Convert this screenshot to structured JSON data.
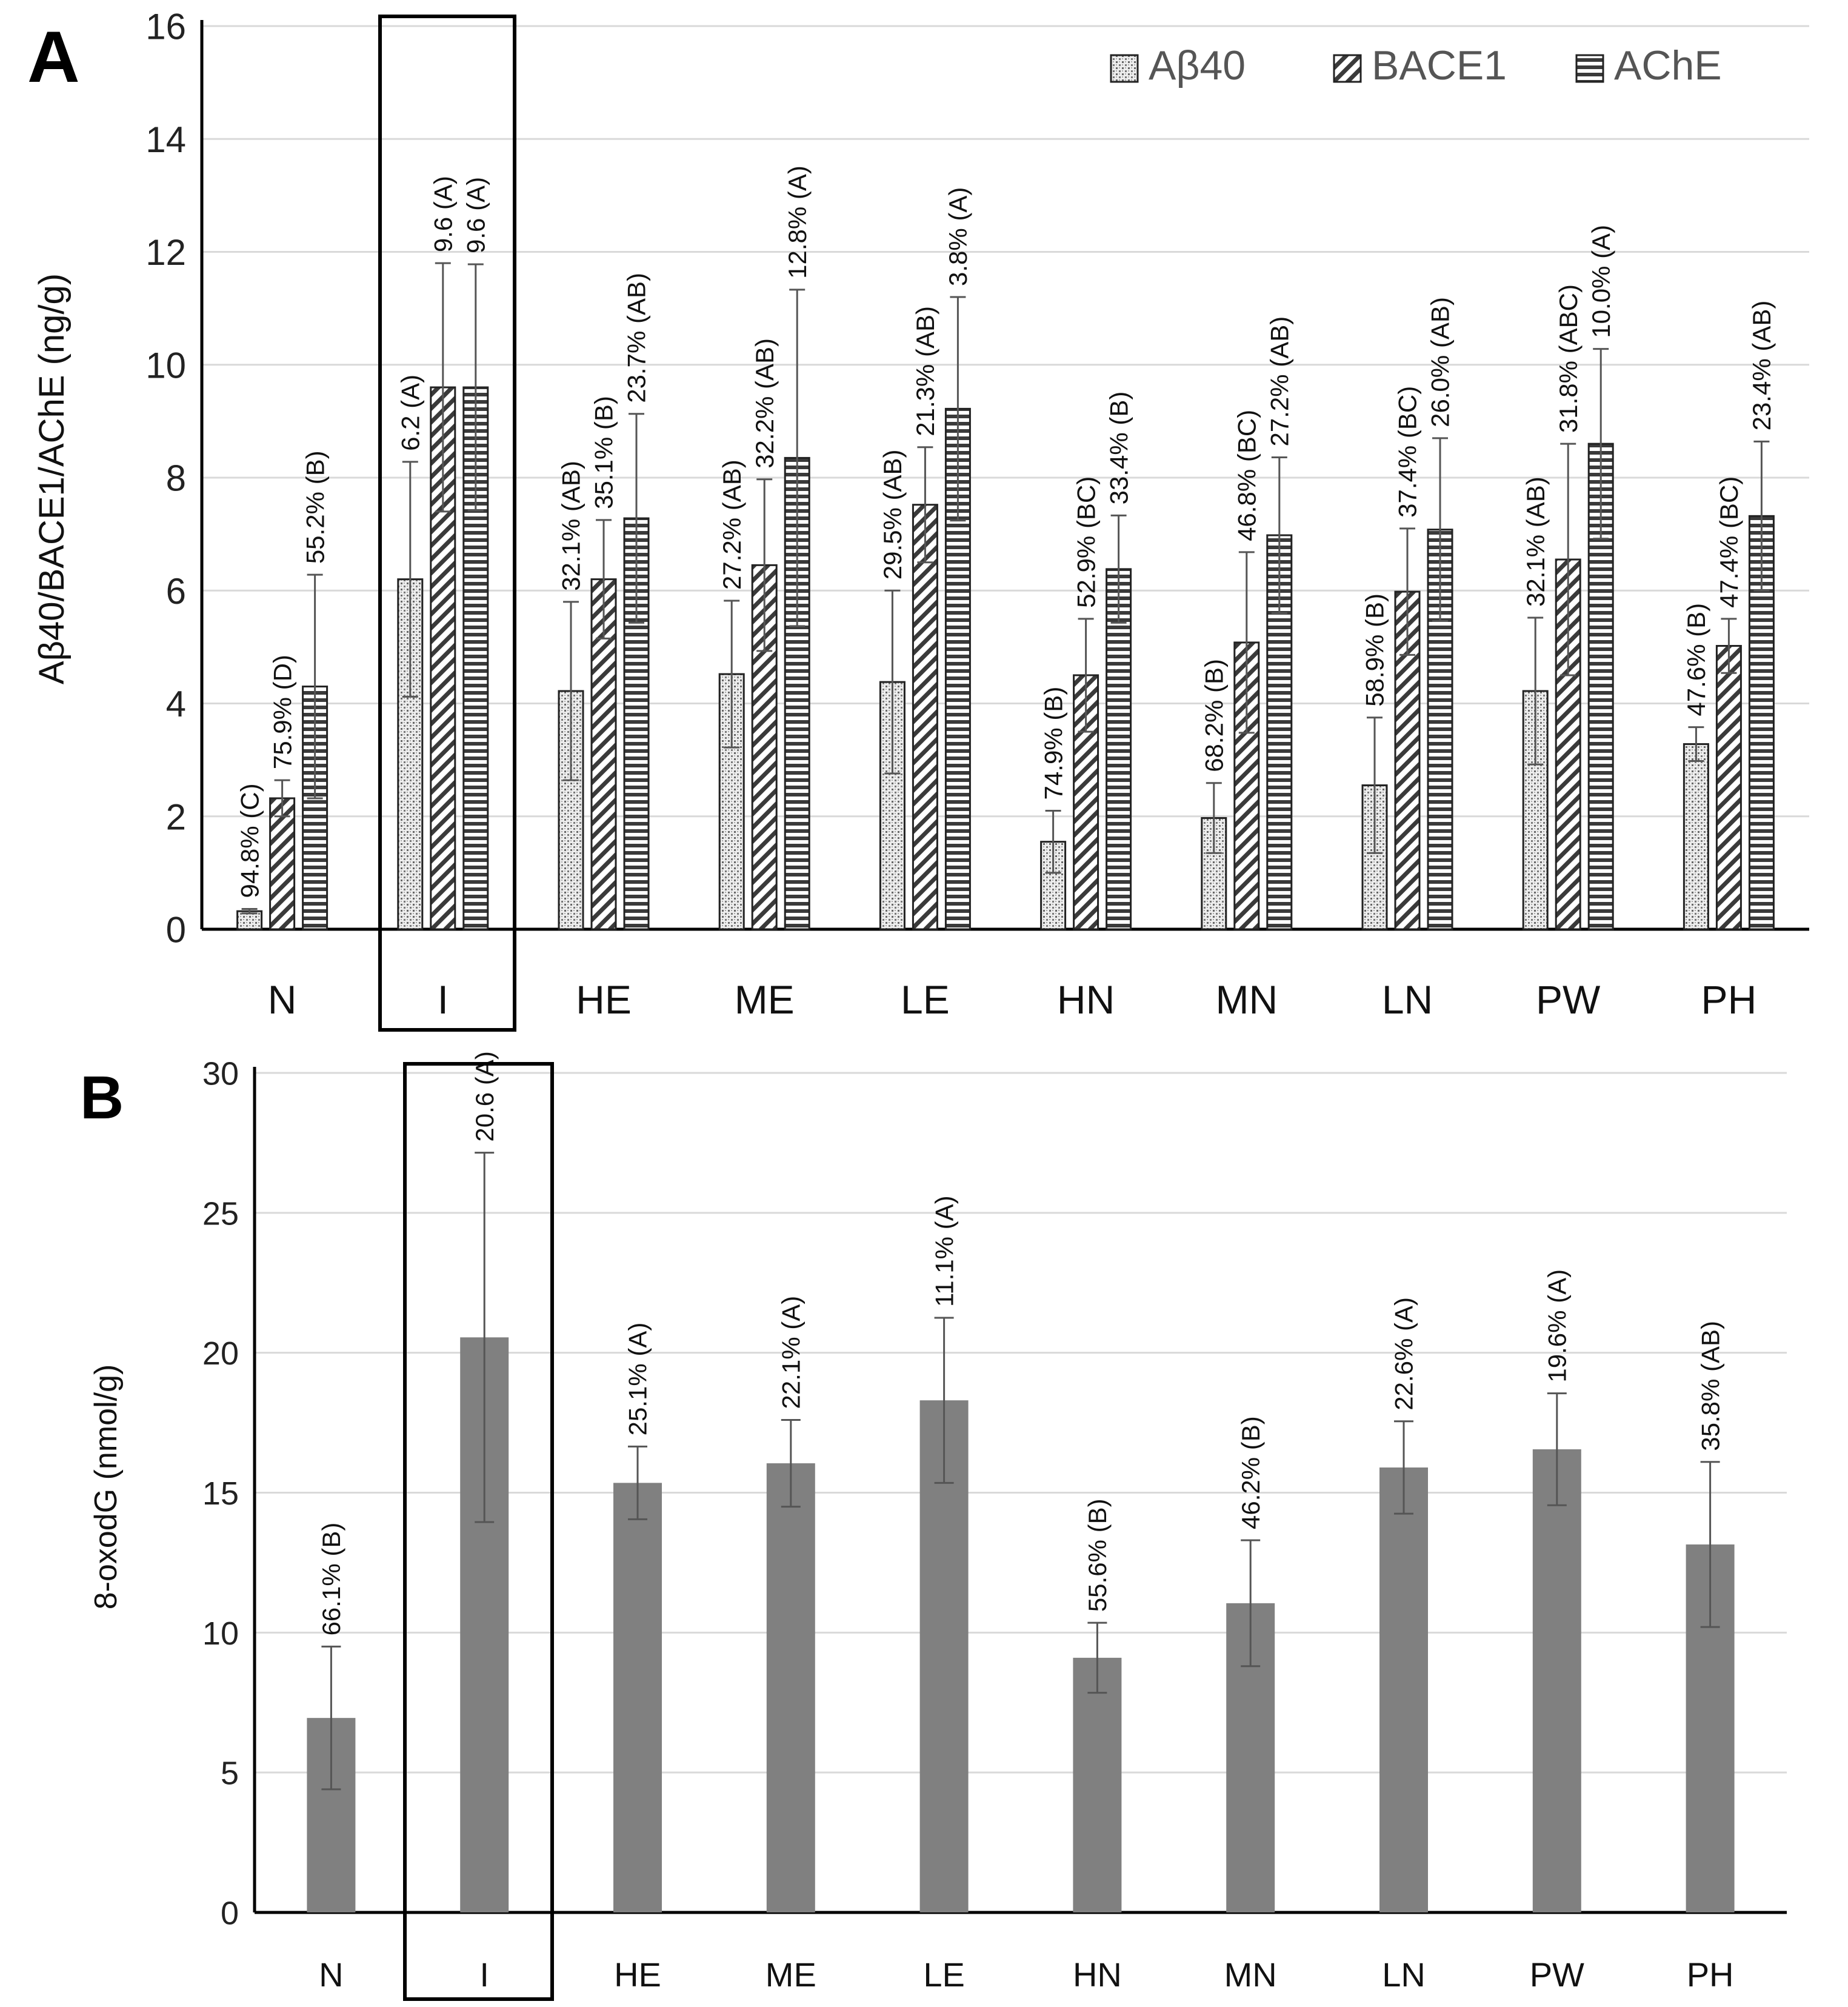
{
  "figure": {
    "panel_a_letter": "A",
    "panel_b_letter": "B"
  },
  "chart_data": [
    {
      "panel": "A",
      "type": "bar",
      "title": "",
      "xlabel": "",
      "ylabel": "Aβ40/BACE1/AChE (ng/g)",
      "ylim": [
        0,
        16
      ],
      "yticks": [
        "0",
        "2",
        "4",
        "6",
        "8",
        "10",
        "12",
        "14",
        "16"
      ],
      "grid": true,
      "legend_position": "top-right",
      "categories": [
        "N",
        "I",
        "HE",
        "ME",
        "LE",
        "HN",
        "MN",
        "LN",
        "PW",
        "PH"
      ],
      "highlight_category": "I",
      "series": [
        {
          "name": "Aβ40",
          "pattern": "dots",
          "values": [
            0.32,
            6.2,
            4.22,
            4.52,
            4.38,
            1.55,
            1.97,
            2.55,
            4.22,
            3.28
          ],
          "errors": [
            0.04,
            2.08,
            1.58,
            1.3,
            1.62,
            0.55,
            0.62,
            1.2,
            1.3,
            0.3
          ],
          "labels": [
            "94.8% (C)",
            "6.2 (A)",
            "32.1% (AB)",
            "27.2% (AB)",
            "29.5% (AB)",
            "74.9% (B)",
            "68.2% (B)",
            "58.9% (B)",
            "32.1% (AB)",
            "47.6% (B)"
          ]
        },
        {
          "name": "BACE1",
          "pattern": "diagonal",
          "values": [
            2.32,
            9.6,
            6.2,
            6.45,
            7.52,
            4.5,
            5.08,
            5.98,
            6.55,
            5.02
          ],
          "errors": [
            0.32,
            2.2,
            1.05,
            1.52,
            1.02,
            1.0,
            1.6,
            1.12,
            2.05,
            0.48
          ],
          "labels": [
            "75.9% (D)",
            "9.6 (A)",
            "35.1% (B)",
            "32.2% (AB)",
            "21.3% (AB)",
            "52.9% (BC)",
            "46.8% (BC)",
            "37.4% (BC)",
            "31.8% (ABC)",
            "47.4% (BC)"
          ]
        },
        {
          "name": "AChE",
          "pattern": "horizontal",
          "values": [
            4.3,
            9.6,
            7.28,
            8.35,
            9.22,
            6.38,
            6.98,
            7.08,
            8.6,
            7.32
          ],
          "errors": [
            1.98,
            2.18,
            1.85,
            2.98,
            1.98,
            0.95,
            1.38,
            1.62,
            1.68,
            1.32
          ],
          "labels": [
            "55.2% (B)",
            "9.6 (A)",
            "23.7% (AB)",
            "12.8% (A)",
            "3.8% (A)",
            "33.4% (B)",
            "27.2% (AB)",
            "26.0% (AB)",
            "10.0% (A)",
            "23.4% (AB)"
          ]
        }
      ]
    },
    {
      "panel": "B",
      "type": "bar",
      "title": "",
      "xlabel": "",
      "ylabel": "8-oxodG (nmol/g)",
      "ylim": [
        0,
        30
      ],
      "yticks": [
        "0",
        "5",
        "10",
        "15",
        "20",
        "25",
        "30"
      ],
      "grid": true,
      "categories": [
        "N",
        "I",
        "HE",
        "ME",
        "LE",
        "HN",
        "MN",
        "LN",
        "PW",
        "PH"
      ],
      "highlight_category": "I",
      "series": [
        {
          "name": "8-oxodG",
          "values": [
            6.95,
            20.55,
            15.35,
            16.05,
            18.3,
            9.1,
            11.05,
            15.9,
            16.55,
            13.15
          ],
          "errors": [
            2.55,
            6.6,
            1.3,
            1.55,
            2.95,
            1.25,
            2.25,
            1.65,
            2.0,
            2.95
          ],
          "labels": [
            "66.1% (B)",
            "20.6 (A)",
            "25.1% (A)",
            "22.1% (A)",
            "11.1% (A)",
            "55.6% (B)",
            "46.2% (B)",
            "22.6% (A)",
            "19.6% (A)",
            "35.8% (AB)"
          ]
        }
      ]
    }
  ]
}
